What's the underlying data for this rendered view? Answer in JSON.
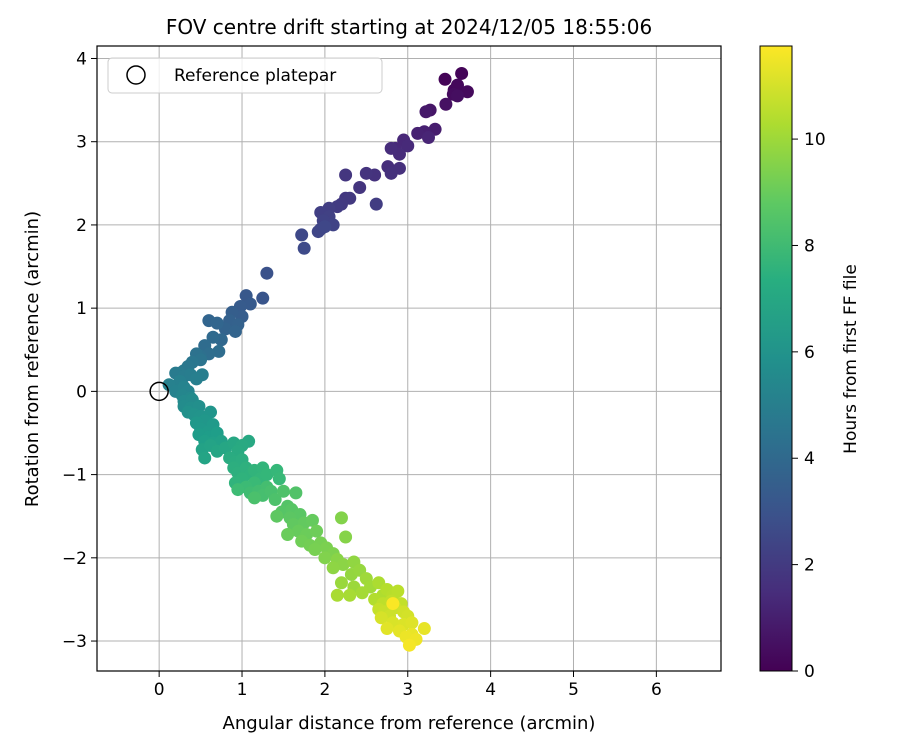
{
  "chart_data": {
    "type": "scatter",
    "title": "FOV centre drift starting at 2024/12/05 18:55:06",
    "xlabel": "Angular distance from reference (arcmin)",
    "ylabel": "Rotation from reference (arcmin)",
    "xlim": [
      -0.75,
      6.78
    ],
    "ylim": [
      -3.36,
      4.15
    ],
    "xticks": [
      0,
      1,
      2,
      3,
      4,
      5,
      6
    ],
    "yticks": [
      -3,
      -2,
      -1,
      0,
      1,
      2,
      3,
      4
    ],
    "grid": true,
    "legend": {
      "placement": "top-left",
      "entries": [
        "Reference platepar"
      ]
    },
    "reference_point": {
      "x": 0,
      "y": 0
    },
    "colorbar": {
      "label": "Hours from first FF file",
      "range": [
        0,
        11.75
      ],
      "ticks": [
        0,
        2,
        4,
        6,
        8,
        10
      ],
      "colormap": "viridis"
    },
    "points": [
      {
        "x": 3.45,
        "y": 3.75,
        "h": 0.1
      },
      {
        "x": 3.65,
        "y": 3.82,
        "h": 0.15
      },
      {
        "x": 3.56,
        "y": 3.62,
        "h": 0.2
      },
      {
        "x": 3.6,
        "y": 3.68,
        "h": 0.25
      },
      {
        "x": 3.72,
        "y": 3.6,
        "h": 0.3
      },
      {
        "x": 3.55,
        "y": 3.57,
        "h": 0.35
      },
      {
        "x": 3.6,
        "y": 3.55,
        "h": 0.45
      },
      {
        "x": 3.46,
        "y": 3.45,
        "h": 0.55
      },
      {
        "x": 3.27,
        "y": 3.38,
        "h": 0.7
      },
      {
        "x": 3.22,
        "y": 3.36,
        "h": 0.8
      },
      {
        "x": 3.33,
        "y": 3.15,
        "h": 0.95
      },
      {
        "x": 3.2,
        "y": 3.12,
        "h": 1.05
      },
      {
        "x": 3.12,
        "y": 3.1,
        "h": 1.1
      },
      {
        "x": 3.25,
        "y": 3.05,
        "h": 1.2
      },
      {
        "x": 2.95,
        "y": 3.02,
        "h": 1.3
      },
      {
        "x": 2.85,
        "y": 2.92,
        "h": 1.35
      },
      {
        "x": 3.0,
        "y": 2.95,
        "h": 1.4
      },
      {
        "x": 2.9,
        "y": 2.85,
        "h": 1.45
      },
      {
        "x": 2.8,
        "y": 2.92,
        "h": 1.5
      },
      {
        "x": 2.76,
        "y": 2.7,
        "h": 1.55
      },
      {
        "x": 2.9,
        "y": 2.68,
        "h": 1.6
      },
      {
        "x": 2.8,
        "y": 2.62,
        "h": 1.65
      },
      {
        "x": 2.6,
        "y": 2.6,
        "h": 1.7
      },
      {
        "x": 2.5,
        "y": 2.62,
        "h": 1.75
      },
      {
        "x": 2.42,
        "y": 2.45,
        "h": 1.8
      },
      {
        "x": 2.25,
        "y": 2.6,
        "h": 1.85
      },
      {
        "x": 2.25,
        "y": 2.32,
        "h": 1.9
      },
      {
        "x": 2.3,
        "y": 2.32,
        "h": 1.95
      },
      {
        "x": 2.2,
        "y": 2.25,
        "h": 2.0
      },
      {
        "x": 2.15,
        "y": 2.22,
        "h": 2.05
      },
      {
        "x": 2.62,
        "y": 2.25,
        "h": 2.1
      },
      {
        "x": 2.05,
        "y": 2.2,
        "h": 2.15
      },
      {
        "x": 1.95,
        "y": 2.15,
        "h": 2.2
      },
      {
        "x": 2.05,
        "y": 2.1,
        "h": 2.25
      },
      {
        "x": 1.98,
        "y": 2.05,
        "h": 2.3
      },
      {
        "x": 2.1,
        "y": 2.0,
        "h": 2.35
      },
      {
        "x": 1.95,
        "y": 1.95,
        "h": 2.4
      },
      {
        "x": 1.92,
        "y": 1.92,
        "h": 2.45
      },
      {
        "x": 2.0,
        "y": 1.98,
        "h": 2.5
      },
      {
        "x": 1.72,
        "y": 1.88,
        "h": 2.55
      },
      {
        "x": 1.75,
        "y": 1.72,
        "h": 2.6
      },
      {
        "x": 1.3,
        "y": 1.42,
        "h": 2.95
      },
      {
        "x": 1.25,
        "y": 1.12,
        "h": 3.1
      },
      {
        "x": 1.05,
        "y": 1.15,
        "h": 3.2
      },
      {
        "x": 1.1,
        "y": 1.05,
        "h": 3.3
      },
      {
        "x": 0.98,
        "y": 1.02,
        "h": 3.35
      },
      {
        "x": 1.0,
        "y": 0.9,
        "h": 3.45
      },
      {
        "x": 0.88,
        "y": 0.95,
        "h": 3.5
      },
      {
        "x": 0.85,
        "y": 0.85,
        "h": 3.6
      },
      {
        "x": 0.95,
        "y": 0.8,
        "h": 3.65
      },
      {
        "x": 0.8,
        "y": 0.75,
        "h": 3.7
      },
      {
        "x": 0.92,
        "y": 0.72,
        "h": 3.75
      },
      {
        "x": 0.6,
        "y": 0.85,
        "h": 3.8
      },
      {
        "x": 0.7,
        "y": 0.82,
        "h": 3.85
      },
      {
        "x": 0.75,
        "y": 0.62,
        "h": 3.9
      },
      {
        "x": 0.65,
        "y": 0.65,
        "h": 4.0
      },
      {
        "x": 0.55,
        "y": 0.55,
        "h": 4.1
      },
      {
        "x": 0.72,
        "y": 0.48,
        "h": 4.15
      },
      {
        "x": 0.6,
        "y": 0.45,
        "h": 4.2
      },
      {
        "x": 0.5,
        "y": 0.42,
        "h": 4.3
      },
      {
        "x": 0.45,
        "y": 0.45,
        "h": 4.4
      },
      {
        "x": 0.5,
        "y": 0.38,
        "h": 4.5
      },
      {
        "x": 0.4,
        "y": 0.35,
        "h": 4.6
      },
      {
        "x": 0.35,
        "y": 0.3,
        "h": 4.65
      },
      {
        "x": 0.3,
        "y": 0.25,
        "h": 4.7
      },
      {
        "x": 0.25,
        "y": 0.22,
        "h": 4.8
      },
      {
        "x": 0.2,
        "y": 0.22,
        "h": 4.85
      },
      {
        "x": 0.3,
        "y": 0.18,
        "h": 4.9
      },
      {
        "x": 0.38,
        "y": 0.2,
        "h": 4.95
      },
      {
        "x": 0.52,
        "y": 0.2,
        "h": 5.0
      },
      {
        "x": 0.45,
        "y": 0.15,
        "h": 5.05
      },
      {
        "x": 0.25,
        "y": 0.12,
        "h": 5.1
      },
      {
        "x": 0.12,
        "y": 0.08,
        "h": 5.15
      },
      {
        "x": 0.2,
        "y": 0.0,
        "h": 5.2
      },
      {
        "x": 0.3,
        "y": 0.05,
        "h": 5.25
      },
      {
        "x": 0.35,
        "y": 0.0,
        "h": 5.3
      },
      {
        "x": 0.28,
        "y": -0.05,
        "h": 5.4
      },
      {
        "x": 0.38,
        "y": -0.08,
        "h": 5.5
      },
      {
        "x": 0.3,
        "y": -0.12,
        "h": 5.6
      },
      {
        "x": 0.4,
        "y": -0.1,
        "h": 5.65
      },
      {
        "x": 0.3,
        "y": -0.18,
        "h": 5.7
      },
      {
        "x": 0.38,
        "y": -0.2,
        "h": 5.8
      },
      {
        "x": 0.48,
        "y": -0.18,
        "h": 5.85
      },
      {
        "x": 0.35,
        "y": -0.25,
        "h": 5.9
      },
      {
        "x": 0.42,
        "y": -0.28,
        "h": 6.0
      },
      {
        "x": 0.5,
        "y": -0.3,
        "h": 6.05
      },
      {
        "x": 0.62,
        "y": -0.25,
        "h": 6.1
      },
      {
        "x": 0.55,
        "y": -0.35,
        "h": 6.2
      },
      {
        "x": 0.45,
        "y": -0.38,
        "h": 6.25
      },
      {
        "x": 0.5,
        "y": -0.45,
        "h": 6.3
      },
      {
        "x": 0.65,
        "y": -0.4,
        "h": 6.35
      },
      {
        "x": 0.58,
        "y": -0.5,
        "h": 6.4
      },
      {
        "x": 0.48,
        "y": -0.52,
        "h": 6.45
      },
      {
        "x": 0.6,
        "y": -0.55,
        "h": 6.5
      },
      {
        "x": 0.7,
        "y": -0.5,
        "h": 6.55
      },
      {
        "x": 0.55,
        "y": -0.6,
        "h": 6.6
      },
      {
        "x": 0.65,
        "y": -0.62,
        "h": 6.65
      },
      {
        "x": 0.75,
        "y": -0.6,
        "h": 6.7
      },
      {
        "x": 0.52,
        "y": -0.7,
        "h": 6.75
      },
      {
        "x": 0.62,
        "y": -0.65,
        "h": 6.8
      },
      {
        "x": 0.55,
        "y": -0.8,
        "h": 6.85
      },
      {
        "x": 0.7,
        "y": -0.72,
        "h": 6.9
      },
      {
        "x": 0.8,
        "y": -0.68,
        "h": 6.95
      },
      {
        "x": 0.9,
        "y": -0.62,
        "h": 7.0
      },
      {
        "x": 1.08,
        "y": -0.6,
        "h": 7.05
      },
      {
        "x": 1.0,
        "y": -0.65,
        "h": 7.1
      },
      {
        "x": 0.95,
        "y": -0.72,
        "h": 7.15
      },
      {
        "x": 0.85,
        "y": -0.8,
        "h": 7.2
      },
      {
        "x": 0.92,
        "y": -0.85,
        "h": 7.25
      },
      {
        "x": 1.0,
        "y": -0.82,
        "h": 7.3
      },
      {
        "x": 0.9,
        "y": -0.92,
        "h": 7.35
      },
      {
        "x": 0.95,
        "y": -0.98,
        "h": 7.4
      },
      {
        "x": 1.05,
        "y": -0.92,
        "h": 7.45
      },
      {
        "x": 1.1,
        "y": -1.0,
        "h": 7.5
      },
      {
        "x": 1.0,
        "y": -1.05,
        "h": 7.55
      },
      {
        "x": 0.92,
        "y": -1.1,
        "h": 7.6
      },
      {
        "x": 1.15,
        "y": -0.95,
        "h": 7.65
      },
      {
        "x": 1.25,
        "y": -0.92,
        "h": 7.7
      },
      {
        "x": 1.22,
        "y": -1.05,
        "h": 7.75
      },
      {
        "x": 1.3,
        "y": -1.0,
        "h": 7.8
      },
      {
        "x": 1.42,
        "y": -0.95,
        "h": 7.85
      },
      {
        "x": 1.45,
        "y": -1.05,
        "h": 7.9
      },
      {
        "x": 1.15,
        "y": -1.1,
        "h": 7.95
      },
      {
        "x": 1.05,
        "y": -1.15,
        "h": 8.0
      },
      {
        "x": 0.95,
        "y": -1.18,
        "h": 8.05
      },
      {
        "x": 1.1,
        "y": -1.22,
        "h": 8.1
      },
      {
        "x": 1.2,
        "y": -1.2,
        "h": 8.15
      },
      {
        "x": 1.3,
        "y": -1.15,
        "h": 8.2
      },
      {
        "x": 1.25,
        "y": -1.25,
        "h": 8.25
      },
      {
        "x": 1.35,
        "y": -1.2,
        "h": 8.3
      },
      {
        "x": 1.15,
        "y": -1.28,
        "h": 8.35
      },
      {
        "x": 1.4,
        "y": -1.3,
        "h": 8.4
      },
      {
        "x": 1.5,
        "y": -1.2,
        "h": 8.45
      },
      {
        "x": 1.65,
        "y": -1.22,
        "h": 8.5
      },
      {
        "x": 1.55,
        "y": -1.38,
        "h": 8.55
      },
      {
        "x": 1.48,
        "y": -1.45,
        "h": 8.6
      },
      {
        "x": 1.6,
        "y": -1.42,
        "h": 8.65
      },
      {
        "x": 1.7,
        "y": -1.48,
        "h": 8.7
      },
      {
        "x": 1.58,
        "y": -1.52,
        "h": 8.75
      },
      {
        "x": 1.42,
        "y": -1.5,
        "h": 8.8
      },
      {
        "x": 1.62,
        "y": -1.6,
        "h": 8.85
      },
      {
        "x": 1.75,
        "y": -1.58,
        "h": 8.9
      },
      {
        "x": 1.85,
        "y": -1.55,
        "h": 8.95
      },
      {
        "x": 1.68,
        "y": -1.68,
        "h": 9.0
      },
      {
        "x": 1.55,
        "y": -1.72,
        "h": 9.05
      },
      {
        "x": 1.78,
        "y": -1.72,
        "h": 9.1
      },
      {
        "x": 1.9,
        "y": -1.68,
        "h": 9.15
      },
      {
        "x": 1.72,
        "y": -1.8,
        "h": 9.2
      },
      {
        "x": 1.82,
        "y": -1.85,
        "h": 9.25
      },
      {
        "x": 1.95,
        "y": -1.82,
        "h": 9.3
      },
      {
        "x": 1.88,
        "y": -1.9,
        "h": 9.35
      },
      {
        "x": 2.02,
        "y": -1.88,
        "h": 9.4
      },
      {
        "x": 2.1,
        "y": -1.95,
        "h": 9.45
      },
      {
        "x": 2.0,
        "y": -2.0,
        "h": 9.5
      },
      {
        "x": 2.2,
        "y": -1.52,
        "h": 9.55
      },
      {
        "x": 2.25,
        "y": -1.75,
        "h": 9.6
      },
      {
        "x": 2.15,
        "y": -2.02,
        "h": 9.65
      },
      {
        "x": 2.22,
        "y": -2.08,
        "h": 9.7
      },
      {
        "x": 2.1,
        "y": -2.12,
        "h": 9.75
      },
      {
        "x": 2.35,
        "y": -2.05,
        "h": 9.8
      },
      {
        "x": 2.32,
        "y": -2.2,
        "h": 9.85
      },
      {
        "x": 2.42,
        "y": -2.15,
        "h": 9.9
      },
      {
        "x": 2.2,
        "y": -2.3,
        "h": 9.95
      },
      {
        "x": 2.35,
        "y": -2.35,
        "h": 10.0
      },
      {
        "x": 2.5,
        "y": -2.25,
        "h": 10.05
      },
      {
        "x": 2.55,
        "y": -2.35,
        "h": 10.1
      },
      {
        "x": 2.45,
        "y": -2.42,
        "h": 10.15
      },
      {
        "x": 2.3,
        "y": -2.45,
        "h": 10.2
      },
      {
        "x": 2.15,
        "y": -2.45,
        "h": 10.25
      },
      {
        "x": 2.65,
        "y": -2.3,
        "h": 10.3
      },
      {
        "x": 2.7,
        "y": -2.45,
        "h": 10.35
      },
      {
        "x": 2.6,
        "y": -2.5,
        "h": 10.4
      },
      {
        "x": 2.75,
        "y": -2.38,
        "h": 10.45
      },
      {
        "x": 2.82,
        "y": -2.45,
        "h": 10.5
      },
      {
        "x": 2.88,
        "y": -2.4,
        "h": 10.55
      },
      {
        "x": 2.7,
        "y": -2.55,
        "h": 10.6
      },
      {
        "x": 2.8,
        "y": -2.52,
        "h": 10.65
      },
      {
        "x": 2.92,
        "y": -2.55,
        "h": 10.7
      },
      {
        "x": 2.65,
        "y": -2.62,
        "h": 10.75
      },
      {
        "x": 2.72,
        "y": -2.65,
        "h": 10.8
      },
      {
        "x": 2.85,
        "y": -2.6,
        "h": 10.85
      },
      {
        "x": 2.78,
        "y": -2.7,
        "h": 10.9
      },
      {
        "x": 2.95,
        "y": -2.65,
        "h": 10.95
      },
      {
        "x": 3.0,
        "y": -2.7,
        "h": 11.0
      },
      {
        "x": 2.68,
        "y": -2.72,
        "h": 11.05
      },
      {
        "x": 2.82,
        "y": -2.78,
        "h": 11.1
      },
      {
        "x": 2.95,
        "y": -2.8,
        "h": 11.15
      },
      {
        "x": 3.05,
        "y": -2.78,
        "h": 11.2
      },
      {
        "x": 2.75,
        "y": -2.85,
        "h": 11.25
      },
      {
        "x": 2.9,
        "y": -2.88,
        "h": 11.3
      },
      {
        "x": 3.2,
        "y": -2.85,
        "h": 11.35
      },
      {
        "x": 3.05,
        "y": -2.92,
        "h": 11.4
      },
      {
        "x": 2.98,
        "y": -2.95,
        "h": 11.45
      },
      {
        "x": 3.1,
        "y": -2.98,
        "h": 11.5
      },
      {
        "x": 3.02,
        "y": -3.05,
        "h": 11.6
      },
      {
        "x": 2.82,
        "y": -2.55,
        "h": 11.7
      }
    ]
  }
}
